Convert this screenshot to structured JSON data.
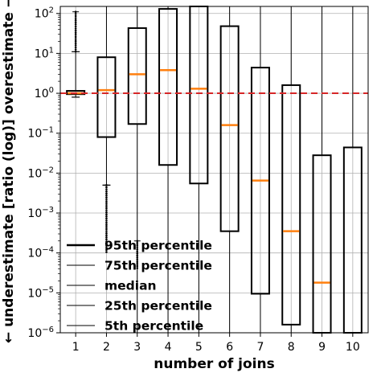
{
  "chart_data": {
    "type": "box",
    "xlabel": "number of joins",
    "ylabel": "← underestimate [ratio (log)] overestimate →",
    "yscale": "log",
    "ylim": [
      1e-06,
      150
    ],
    "categories": [
      "1",
      "2",
      "3",
      "4",
      "5",
      "6",
      "7",
      "8",
      "9",
      "10"
    ],
    "y_ticks": [
      {
        "value": 1e-06,
        "base": "10",
        "exp": "−6"
      },
      {
        "value": 1e-05,
        "base": "10",
        "exp": "−5"
      },
      {
        "value": 0.0001,
        "base": "10",
        "exp": "−4"
      },
      {
        "value": 0.001,
        "base": "10",
        "exp": "−3"
      },
      {
        "value": 0.01,
        "base": "10",
        "exp": "−2"
      },
      {
        "value": 0.1,
        "base": "10",
        "exp": "−1"
      },
      {
        "value": 1,
        "base": "10",
        "exp": "0"
      },
      {
        "value": 10,
        "base": "10",
        "exp": "1"
      },
      {
        "value": 100,
        "base": "10",
        "exp": "2"
      }
    ],
    "grid": true,
    "reference_line": {
      "value": 1,
      "color": "#d62728",
      "style": "dashed"
    },
    "box_color": "#000000",
    "median_color": "#ff7f0e",
    "boxes": [
      {
        "category": "1",
        "q1": 0.95,
        "median": 1.0,
        "q3": 1.15,
        "whisker_low": 0.8,
        "whisker_high": 11
      },
      {
        "category": "2",
        "q1": 0.08,
        "median": 1.2,
        "q3": 8,
        "whisker_low": 0.005,
        "whisker_high": 150
      },
      {
        "category": "3",
        "q1": 0.17,
        "median": 3.0,
        "q3": 43,
        "whisker_low": 1e-06,
        "whisker_high": 150
      },
      {
        "category": "4",
        "q1": 0.016,
        "median": 3.8,
        "q3": 130,
        "whisker_low": 1e-06,
        "whisker_high": 150
      },
      {
        "category": "5",
        "q1": 0.0055,
        "median": 1.3,
        "q3": 150,
        "whisker_low": 1e-06,
        "whisker_high": 150
      },
      {
        "category": "6",
        "q1": 0.00035,
        "median": 0.16,
        "q3": 48,
        "whisker_low": 1e-06,
        "whisker_high": 150
      },
      {
        "category": "7",
        "q1": 9.5e-06,
        "median": 0.0065,
        "q3": 4.4,
        "whisker_low": 1e-06,
        "whisker_high": 150
      },
      {
        "category": "8",
        "q1": 1.6e-06,
        "median": 0.00035,
        "q3": 1.6,
        "whisker_low": 1e-06,
        "whisker_high": 150
      },
      {
        "category": "9",
        "q1": 1e-06,
        "median": 1.8e-05,
        "q3": 0.028,
        "whisker_low": 1e-06,
        "whisker_high": 150
      },
      {
        "category": "10",
        "q1": 1e-06,
        "median": 1e-06,
        "q3": 0.044,
        "whisker_low": 1e-06,
        "whisker_high": 150
      }
    ],
    "outliers": [
      {
        "category": "1",
        "range": [
          11,
          110
        ]
      },
      {
        "category": "2",
        "range": [
          0.0001,
          0.005
        ]
      },
      {
        "category": "3",
        "range": [
          4e-05,
          0.0002
        ]
      }
    ],
    "legend": {
      "placement": "lower-left",
      "entries": [
        {
          "label": "95th percentile",
          "width": 2.5
        },
        {
          "label": "75th percentile",
          "width": 1.0
        },
        {
          "label": "median",
          "width": 1.0
        },
        {
          "label": "25th percentile",
          "width": 1.0
        },
        {
          "label": "5th percentile",
          "width": 1.0
        }
      ]
    }
  }
}
